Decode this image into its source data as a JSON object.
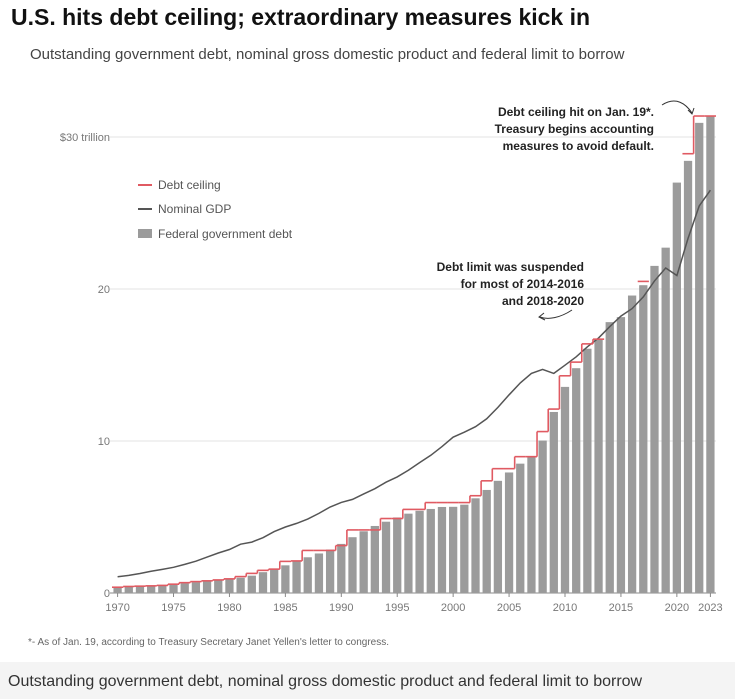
{
  "header": {
    "title": "U.S. hits debt ceiling; extraordinary measures kick in",
    "subtitle": "Outstanding government debt, nominal gross domestic product and federal limit to borrow"
  },
  "caption": "Outstanding government debt, nominal gross domestic product and federal limit to borrow",
  "colors": {
    "ceiling": "#e05a62",
    "gdp": "#555555",
    "debt": "#9b9b9b"
  },
  "chart_data": {
    "type": "bar",
    "title": "U.S. hits debt ceiling; extraordinary measures kick in",
    "subtitle": "Outstanding government debt, nominal gross domestic product and federal limit to borrow",
    "xlabel": "",
    "ylabel": "",
    "ylim": [
      0,
      30
    ],
    "y_ticks": [
      {
        "value": 0,
        "label": "0"
      },
      {
        "value": 10,
        "label": "10"
      },
      {
        "value": 20,
        "label": "20"
      },
      {
        "value": 30,
        "label": "$30 trillion"
      }
    ],
    "x_ticks": [
      "1970",
      "1975",
      "1980",
      "1985",
      "1990",
      "1995",
      "2000",
      "2005",
      "2010",
      "2015",
      "2020",
      "2023"
    ],
    "categories": [
      "1970",
      "1971",
      "1972",
      "1973",
      "1974",
      "1975",
      "1976",
      "1977",
      "1978",
      "1979",
      "1980",
      "1981",
      "1982",
      "1983",
      "1984",
      "1985",
      "1986",
      "1987",
      "1988",
      "1989",
      "1990",
      "1991",
      "1992",
      "1993",
      "1994",
      "1995",
      "1996",
      "1997",
      "1998",
      "1999",
      "2000",
      "2001",
      "2002",
      "2003",
      "2004",
      "2005",
      "2006",
      "2007",
      "2008",
      "2009",
      "2010",
      "2011",
      "2012",
      "2013",
      "2014",
      "2015",
      "2016",
      "2017",
      "2018",
      "2019",
      "2020",
      "2021",
      "2022",
      "2023"
    ],
    "series": [
      {
        "name": "Federal government debt",
        "type": "bar",
        "values": [
          0.38,
          0.41,
          0.44,
          0.47,
          0.48,
          0.54,
          0.63,
          0.71,
          0.78,
          0.83,
          0.91,
          1.0,
          1.14,
          1.37,
          1.56,
          1.82,
          2.13,
          2.35,
          2.6,
          2.86,
          3.23,
          3.67,
          4.06,
          4.41,
          4.69,
          4.97,
          5.22,
          5.41,
          5.53,
          5.66,
          5.67,
          5.81,
          6.23,
          6.78,
          7.38,
          7.93,
          8.51,
          9.01,
          10.03,
          11.91,
          13.56,
          14.79,
          16.07,
          16.74,
          17.82,
          18.15,
          19.57,
          20.25,
          21.52,
          22.72,
          27.0,
          28.43,
          30.93,
          31.4
        ]
      },
      {
        "name": "Nominal GDP",
        "type": "line",
        "values": [
          1.07,
          1.16,
          1.28,
          1.43,
          1.55,
          1.69,
          1.88,
          2.09,
          2.36,
          2.63,
          2.86,
          3.21,
          3.35,
          3.64,
          4.04,
          4.34,
          4.58,
          4.86,
          5.24,
          5.66,
          5.96,
          6.16,
          6.52,
          6.86,
          7.29,
          7.64,
          8.07,
          8.58,
          9.06,
          9.63,
          10.25,
          10.58,
          10.94,
          11.46,
          12.21,
          13.04,
          13.82,
          14.45,
          14.71,
          14.45,
          14.99,
          15.54,
          16.2,
          16.78,
          17.52,
          18.22,
          18.71,
          19.48,
          20.53,
          21.38,
          20.89,
          23.32,
          25.46,
          26.5
        ]
      },
      {
        "name": "Debt ceiling",
        "type": "step",
        "values": [
          0.38,
          0.43,
          0.45,
          0.47,
          0.5,
          0.58,
          0.68,
          0.75,
          0.8,
          0.86,
          0.93,
          1.08,
          1.29,
          1.49,
          1.57,
          2.08,
          2.11,
          2.8,
          2.8,
          2.8,
          3.12,
          4.15,
          4.15,
          4.15,
          4.9,
          4.9,
          5.5,
          5.5,
          5.95,
          5.95,
          5.95,
          5.95,
          6.4,
          7.38,
          8.18,
          8.18,
          8.97,
          8.97,
          10.62,
          12.1,
          14.29,
          15.19,
          16.39,
          16.7,
          16.7,
          17.2,
          19.8,
          20.5,
          20.5,
          22.0,
          22.0,
          28.9,
          31.38,
          31.38
        ],
        "suspended_years": [
          "2014",
          "2015",
          "2016",
          "2018",
          "2019",
          "2020"
        ]
      }
    ],
    "legend": [
      {
        "label": "Debt ceiling",
        "kind": "line",
        "series": "Debt ceiling"
      },
      {
        "label": "Nominal GDP",
        "kind": "line",
        "series": "Nominal GDP"
      },
      {
        "label": "Federal government debt",
        "kind": "bar",
        "series": "Federal government debt"
      }
    ],
    "legend_position": "top-left",
    "grid": "horizontal",
    "annotations": [
      {
        "id": "ceiling-hit",
        "lines": [
          "Debt ceiling hit on Jan. 19*.",
          "Treasury begins accounting",
          "measures to avoid default."
        ]
      },
      {
        "id": "suspended",
        "lines": [
          "Debt limit was suspended",
          "for most of 2014-2016",
          "and 2018-2020"
        ]
      }
    ],
    "footnote": "*- As of Jan. 19, according to Treasury Secretary Janet Yellen's letter to congress."
  }
}
